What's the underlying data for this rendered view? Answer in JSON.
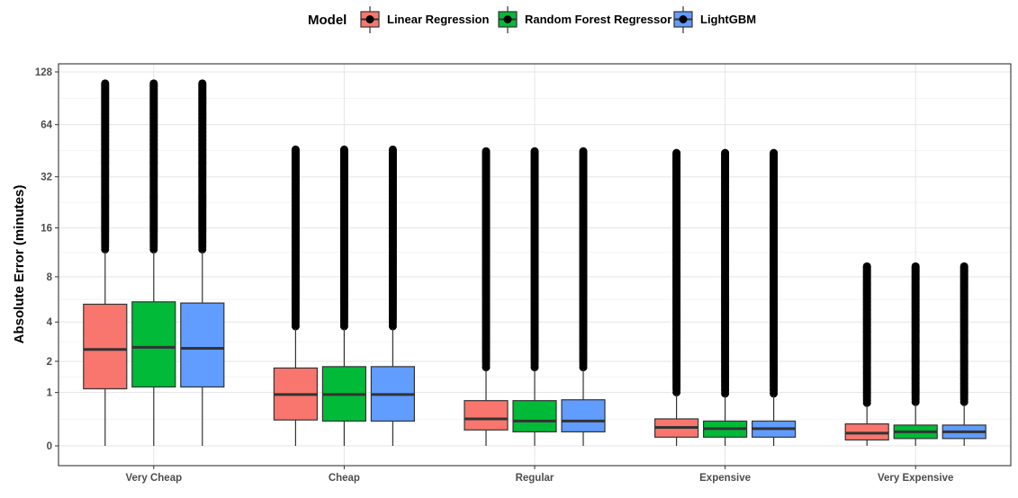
{
  "chart_data": {
    "type": "boxplot",
    "title": "",
    "xlabel": "",
    "ylabel": "Absolute Error (minutes)",
    "y_scale": "pseudo-log2",
    "y_ticks": [
      0,
      1,
      2,
      4,
      8,
      16,
      32,
      64,
      128
    ],
    "y_tick_labels": [
      "0",
      "1",
      "2",
      "4",
      "8",
      "16",
      "32",
      "64",
      "128"
    ],
    "ylim": [
      0,
      128
    ],
    "grid": true,
    "legend": {
      "title": "Model",
      "position": "top"
    },
    "categories": [
      "Very Cheap",
      "Cheap",
      "Regular",
      "Expensive",
      "Very Expensive"
    ],
    "series": [
      {
        "name": "Linear Regression",
        "color": "#F8766D",
        "boxes": [
          {
            "min": 0,
            "q1": 1.1,
            "median": 2.5,
            "q3": 5.3,
            "whisker_high": 11.5,
            "outlier_max": 110
          },
          {
            "min": 0,
            "q1": 0.4,
            "median": 0.95,
            "q3": 1.75,
            "whisker_high": 3.6,
            "outlier_max": 46
          },
          {
            "min": 0,
            "q1": 0.23,
            "median": 0.42,
            "q3": 0.8,
            "whisker_high": 1.7,
            "outlier_max": 45
          },
          {
            "min": 0,
            "q1": 0.12,
            "median": 0.27,
            "q3": 0.42,
            "whisker_high": 0.95,
            "outlier_max": 44
          },
          {
            "min": 0,
            "q1": 0.08,
            "median": 0.18,
            "q3": 0.33,
            "whisker_high": 0.7,
            "outlier_max": 9.3
          }
        ]
      },
      {
        "name": "Random Forest Regressor",
        "color": "#00BA38",
        "boxes": [
          {
            "min": 0,
            "q1": 1.15,
            "median": 2.6,
            "q3": 5.5,
            "whisker_high": 11.5,
            "outlier_max": 110
          },
          {
            "min": 0,
            "q1": 0.38,
            "median": 0.95,
            "q3": 1.8,
            "whisker_high": 3.6,
            "outlier_max": 46
          },
          {
            "min": 0,
            "q1": 0.2,
            "median": 0.38,
            "q3": 0.8,
            "whisker_high": 1.7,
            "outlier_max": 45
          },
          {
            "min": 0,
            "q1": 0.12,
            "median": 0.25,
            "q3": 0.38,
            "whisker_high": 0.92,
            "outlier_max": 44
          },
          {
            "min": 0,
            "q1": 0.1,
            "median": 0.2,
            "q3": 0.31,
            "whisker_high": 0.72,
            "outlier_max": 9.3
          }
        ]
      },
      {
        "name": "LightGBM",
        "color": "#619CFF",
        "boxes": [
          {
            "min": 0,
            "q1": 1.15,
            "median": 2.55,
            "q3": 5.4,
            "whisker_high": 11.5,
            "outlier_max": 110
          },
          {
            "min": 0,
            "q1": 0.38,
            "median": 0.95,
            "q3": 1.8,
            "whisker_high": 3.6,
            "outlier_max": 46
          },
          {
            "min": 0,
            "q1": 0.2,
            "median": 0.38,
            "q3": 0.82,
            "whisker_high": 1.7,
            "outlier_max": 45
          },
          {
            "min": 0,
            "q1": 0.12,
            "median": 0.25,
            "q3": 0.38,
            "whisker_high": 0.92,
            "outlier_max": 44
          },
          {
            "min": 0,
            "q1": 0.1,
            "median": 0.2,
            "q3": 0.31,
            "whisker_high": 0.72,
            "outlier_max": 9.3
          }
        ]
      }
    ]
  }
}
